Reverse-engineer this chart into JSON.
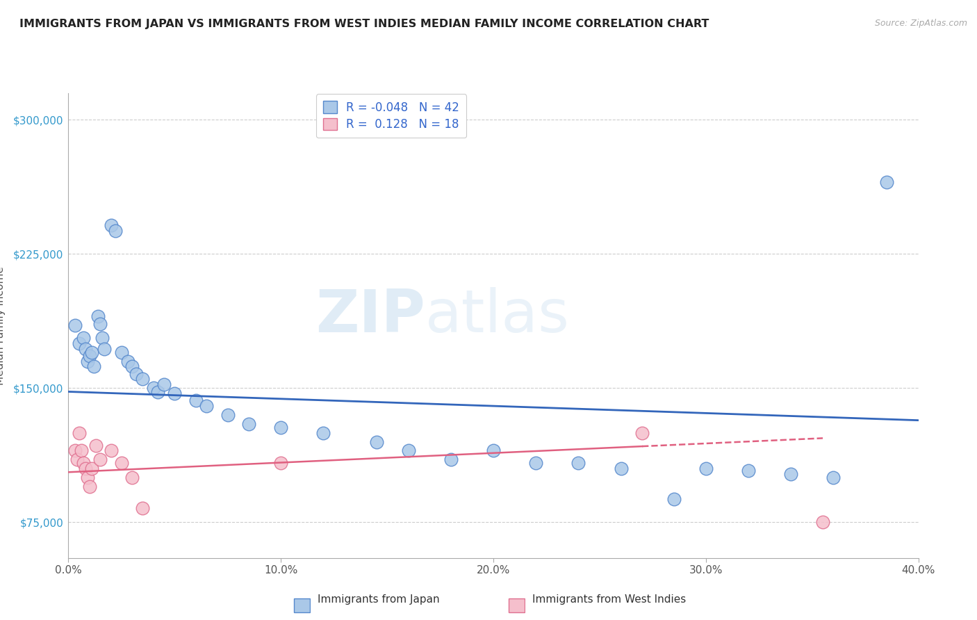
{
  "title": "IMMIGRANTS FROM JAPAN VS IMMIGRANTS FROM WEST INDIES MEDIAN FAMILY INCOME CORRELATION CHART",
  "source": "Source: ZipAtlas.com",
  "ylabel": "Median Family Income",
  "xlim": [
    0.0,
    40.0
  ],
  "ylim": [
    55000,
    315000
  ],
  "yticks": [
    75000,
    150000,
    225000,
    300000
  ],
  "ytick_labels": [
    "$75,000",
    "$150,000",
    "$225,000",
    "$300,000"
  ],
  "xticks": [
    0,
    10,
    20,
    30,
    40
  ],
  "xtick_labels": [
    "0.0%",
    "10.0%",
    "20.0%",
    "30.0%",
    "40.0%"
  ],
  "watermark_zip": "ZIP",
  "watermark_atlas": "atlas",
  "legend_r1": "R = -0.048",
  "legend_n1": "N = 42",
  "legend_r2": "R =  0.128",
  "legend_n2": "N = 18",
  "color_blue_fill": "#aac8e8",
  "color_blue_edge": "#5588cc",
  "color_blue_line": "#3366bb",
  "color_pink_fill": "#f5bfcc",
  "color_pink_edge": "#e07090",
  "color_pink_line": "#e06080",
  "color_legend_text": "#3366cc",
  "color_ytick_text": "#3399cc",
  "background_color": "#ffffff",
  "grid_color": "#cccccc",
  "blue_points": [
    [
      0.3,
      185000
    ],
    [
      0.5,
      175000
    ],
    [
      0.7,
      178000
    ],
    [
      0.8,
      172000
    ],
    [
      0.9,
      165000
    ],
    [
      1.0,
      168000
    ],
    [
      1.1,
      170000
    ],
    [
      1.2,
      162000
    ],
    [
      1.4,
      190000
    ],
    [
      1.5,
      186000
    ],
    [
      1.6,
      178000
    ],
    [
      1.7,
      172000
    ],
    [
      2.0,
      241000
    ],
    [
      2.2,
      238000
    ],
    [
      2.5,
      170000
    ],
    [
      2.8,
      165000
    ],
    [
      3.0,
      162000
    ],
    [
      3.2,
      158000
    ],
    [
      3.5,
      155000
    ],
    [
      4.0,
      150000
    ],
    [
      4.2,
      148000
    ],
    [
      4.5,
      152000
    ],
    [
      5.0,
      147000
    ],
    [
      6.0,
      143000
    ],
    [
      6.5,
      140000
    ],
    [
      7.5,
      135000
    ],
    [
      8.5,
      130000
    ],
    [
      10.0,
      128000
    ],
    [
      12.0,
      125000
    ],
    [
      14.5,
      120000
    ],
    [
      16.0,
      115000
    ],
    [
      18.0,
      110000
    ],
    [
      20.0,
      115000
    ],
    [
      22.0,
      108000
    ],
    [
      24.0,
      108000
    ],
    [
      26.0,
      105000
    ],
    [
      28.5,
      88000
    ],
    [
      30.0,
      105000
    ],
    [
      32.0,
      104000
    ],
    [
      34.0,
      102000
    ],
    [
      36.0,
      100000
    ],
    [
      38.5,
      265000
    ]
  ],
  "pink_points": [
    [
      0.3,
      115000
    ],
    [
      0.4,
      110000
    ],
    [
      0.5,
      125000
    ],
    [
      0.6,
      115000
    ],
    [
      0.7,
      108000
    ],
    [
      0.8,
      105000
    ],
    [
      0.9,
      100000
    ],
    [
      1.0,
      95000
    ],
    [
      1.1,
      105000
    ],
    [
      1.3,
      118000
    ],
    [
      1.5,
      110000
    ],
    [
      2.0,
      115000
    ],
    [
      2.5,
      108000
    ],
    [
      3.0,
      100000
    ],
    [
      3.5,
      83000
    ],
    [
      10.0,
      108000
    ],
    [
      27.0,
      125000
    ],
    [
      35.5,
      75000
    ]
  ],
  "blue_trend_x": [
    0.0,
    40.0
  ],
  "blue_trend_y": [
    148000,
    132000
  ],
  "pink_trend_x": [
    0.0,
    35.5
  ],
  "pink_trend_y": [
    103000,
    122000
  ]
}
